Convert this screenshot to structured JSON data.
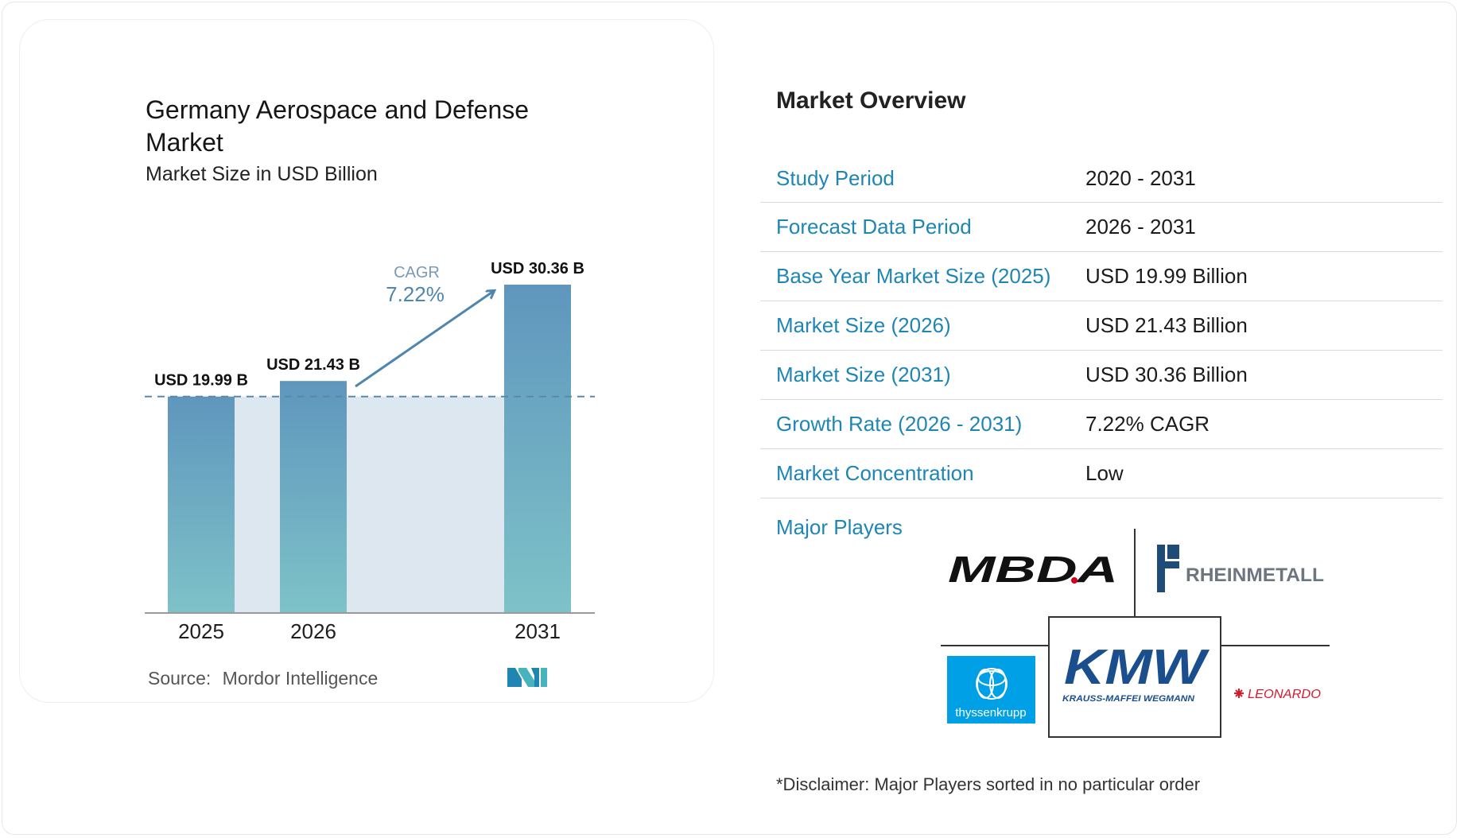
{
  "colors": {
    "accent": "#1f86b4",
    "bar_top": "#5f96bd",
    "bar_bottom": "#7ec2c8",
    "band": "#dde7f0",
    "arrow": "#4f86ad"
  },
  "chart": {
    "title": "Germany Aerospace and Defense Market",
    "subtitle": "Market Size in USD Billion",
    "cagr_label": "CAGR",
    "cagr_value": "7.22%"
  },
  "chart_data": {
    "type": "bar",
    "categories": [
      "2025",
      "2026",
      "2031"
    ],
    "values": [
      19.99,
      21.43,
      30.36
    ],
    "data_labels": [
      "USD 19.99 B",
      "USD 21.43 B",
      "USD 30.36 B"
    ],
    "title": "Germany Aerospace and Defense Market",
    "subtitle": "Market Size in USD Billion",
    "xlabel": "",
    "ylabel": "",
    "ylim": [
      0,
      30.36
    ],
    "grid": false,
    "reference_line": 19.99
  },
  "source": {
    "label": "Source:",
    "value": "Mordor Intelligence"
  },
  "overview": {
    "title": "Market Overview",
    "rows": [
      {
        "label": "Study Period",
        "value": "2020 - 2031"
      },
      {
        "label": "Forecast Data Period",
        "value": "2026 - 2031"
      },
      {
        "label": "Base Year Market Size (2025)",
        "value": "USD 19.99 Billion"
      },
      {
        "label": "Market Size (2026)",
        "value": "USD 21.43 Billion"
      },
      {
        "label": "Market Size (2031)",
        "value": "USD 30.36 Billion"
      },
      {
        "label": "Growth Rate (2026 - 2031)",
        "value": "7.22% CAGR"
      },
      {
        "label": "Market Concentration",
        "value": "Low"
      }
    ]
  },
  "players": {
    "label": "Major Players",
    "logos": {
      "mbda": "MBDA",
      "rheinmetall": "RHEINMETALL",
      "thyssenkrupp": "thyssenkrupp",
      "kmw": "KMW",
      "kmw_sub": "KRAUSS-MAFFEI WEGMANN",
      "leonardo": "LEONARDO"
    }
  },
  "disclaimer": "*Disclaimer: Major Players sorted in no particular order"
}
